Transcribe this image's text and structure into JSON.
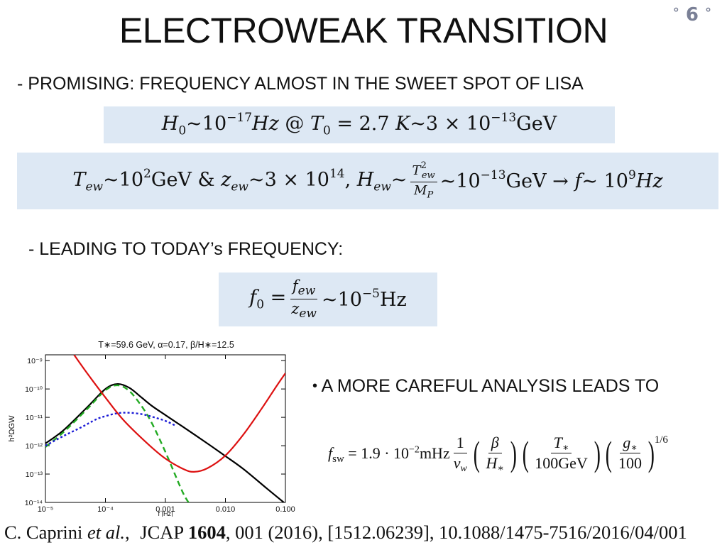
{
  "slide": {
    "title": "ELECTROWEAK TRANSITION",
    "page_number": "6",
    "bullet1": "- PROMISING: FREQUENCY ALMOST IN THE SWEET SPOT OF LISA",
    "bullet2": "- LEADING TO TODAY’s FREQUENCY:",
    "bullet3": "A MORE CAREFUL ANALYSIS LEADS TO",
    "citation": {
      "authors": "C. Caprini",
      "etal": "et al.,",
      "journal": "JCAP",
      "volume": "1604",
      "rest": ", 001 (2016), [1512.06239],   10.1088/1475-7516/2016/04/001"
    }
  },
  "chart_data": {
    "type": "line",
    "title": "T∗=59.6 GeV,  α=0.17,  β/H∗=12.5",
    "xlabel": "f [Hz]",
    "ylabel": "h²ΩGW",
    "xscale": "log",
    "yscale": "log",
    "xlim": [
      1e-05,
      0.1
    ],
    "ylim": [
      1e-14,
      1.6e-09
    ],
    "x_ticks": [
      "10⁻⁵",
      "10⁻⁴",
      "0.001",
      "0.010",
      "0.100"
    ],
    "y_ticks": [
      "10⁻⁹",
      "10⁻¹⁰",
      "10⁻¹¹",
      "10⁻¹²",
      "10⁻¹³",
      "10⁻¹⁴"
    ],
    "series": [
      {
        "color": "#000000",
        "dash": "solid",
        "x": [
          1e-05,
          2e-05,
          5e-05,
          0.0001,
          0.00016,
          0.00025,
          0.0004,
          0.0006,
          0.001,
          0.002,
          0.005,
          0.01,
          0.02,
          0.05,
          0.1
        ],
        "y": [
          1.2e-12,
          3.5e-12,
          2.3e-11,
          1e-10,
          1.5e-10,
          1.1e-10,
          5e-11,
          2.5e-11,
          1.2e-11,
          4.5e-12,
          1.2e-12,
          4.3e-13,
          1.5e-13,
          3e-14,
          9e-15
        ]
      },
      {
        "color": "#22aa22",
        "dash": "dashed",
        "x": [
          1e-05,
          2e-05,
          5e-05,
          0.0001,
          0.00016,
          0.00025,
          0.0004,
          0.0006,
          0.001,
          0.0015,
          0.002,
          0.0025
        ],
        "y": [
          9e-13,
          3e-12,
          2e-11,
          9e-11,
          1.35e-10,
          8.5e-11,
          2.5e-11,
          6e-12,
          6e-13,
          8e-14,
          2e-14,
          9e-15
        ]
      },
      {
        "color": "#1a1ad6",
        "dash": "dotted",
        "x": [
          1e-05,
          2e-05,
          4e-05,
          7e-05,
          0.0001,
          0.00016,
          0.00025,
          0.0004,
          0.0006,
          0.001,
          0.0015
        ],
        "y": [
          1e-12,
          2.2e-12,
          4.5e-12,
          8.5e-12,
          1.1e-11,
          1.4e-11,
          1.45e-11,
          1.3e-11,
          1.05e-11,
          7.5e-12,
          5e-12
        ]
      },
      {
        "color": "#dd1111",
        "dash": "solid",
        "x": [
          3e-05,
          5e-05,
          0.0001,
          0.0002,
          0.0005,
          0.001,
          0.002,
          0.003,
          0.005,
          0.01,
          0.02,
          0.04,
          0.07,
          0.1
        ],
        "y": [
          1.6e-09,
          3.5e-10,
          5e-11,
          8e-12,
          1.2e-12,
          3.5e-13,
          1.5e-13,
          1.2e-13,
          1.6e-13,
          4.5e-13,
          2.5e-12,
          2e-11,
          1.2e-10,
          3.6e-10
        ]
      }
    ]
  }
}
